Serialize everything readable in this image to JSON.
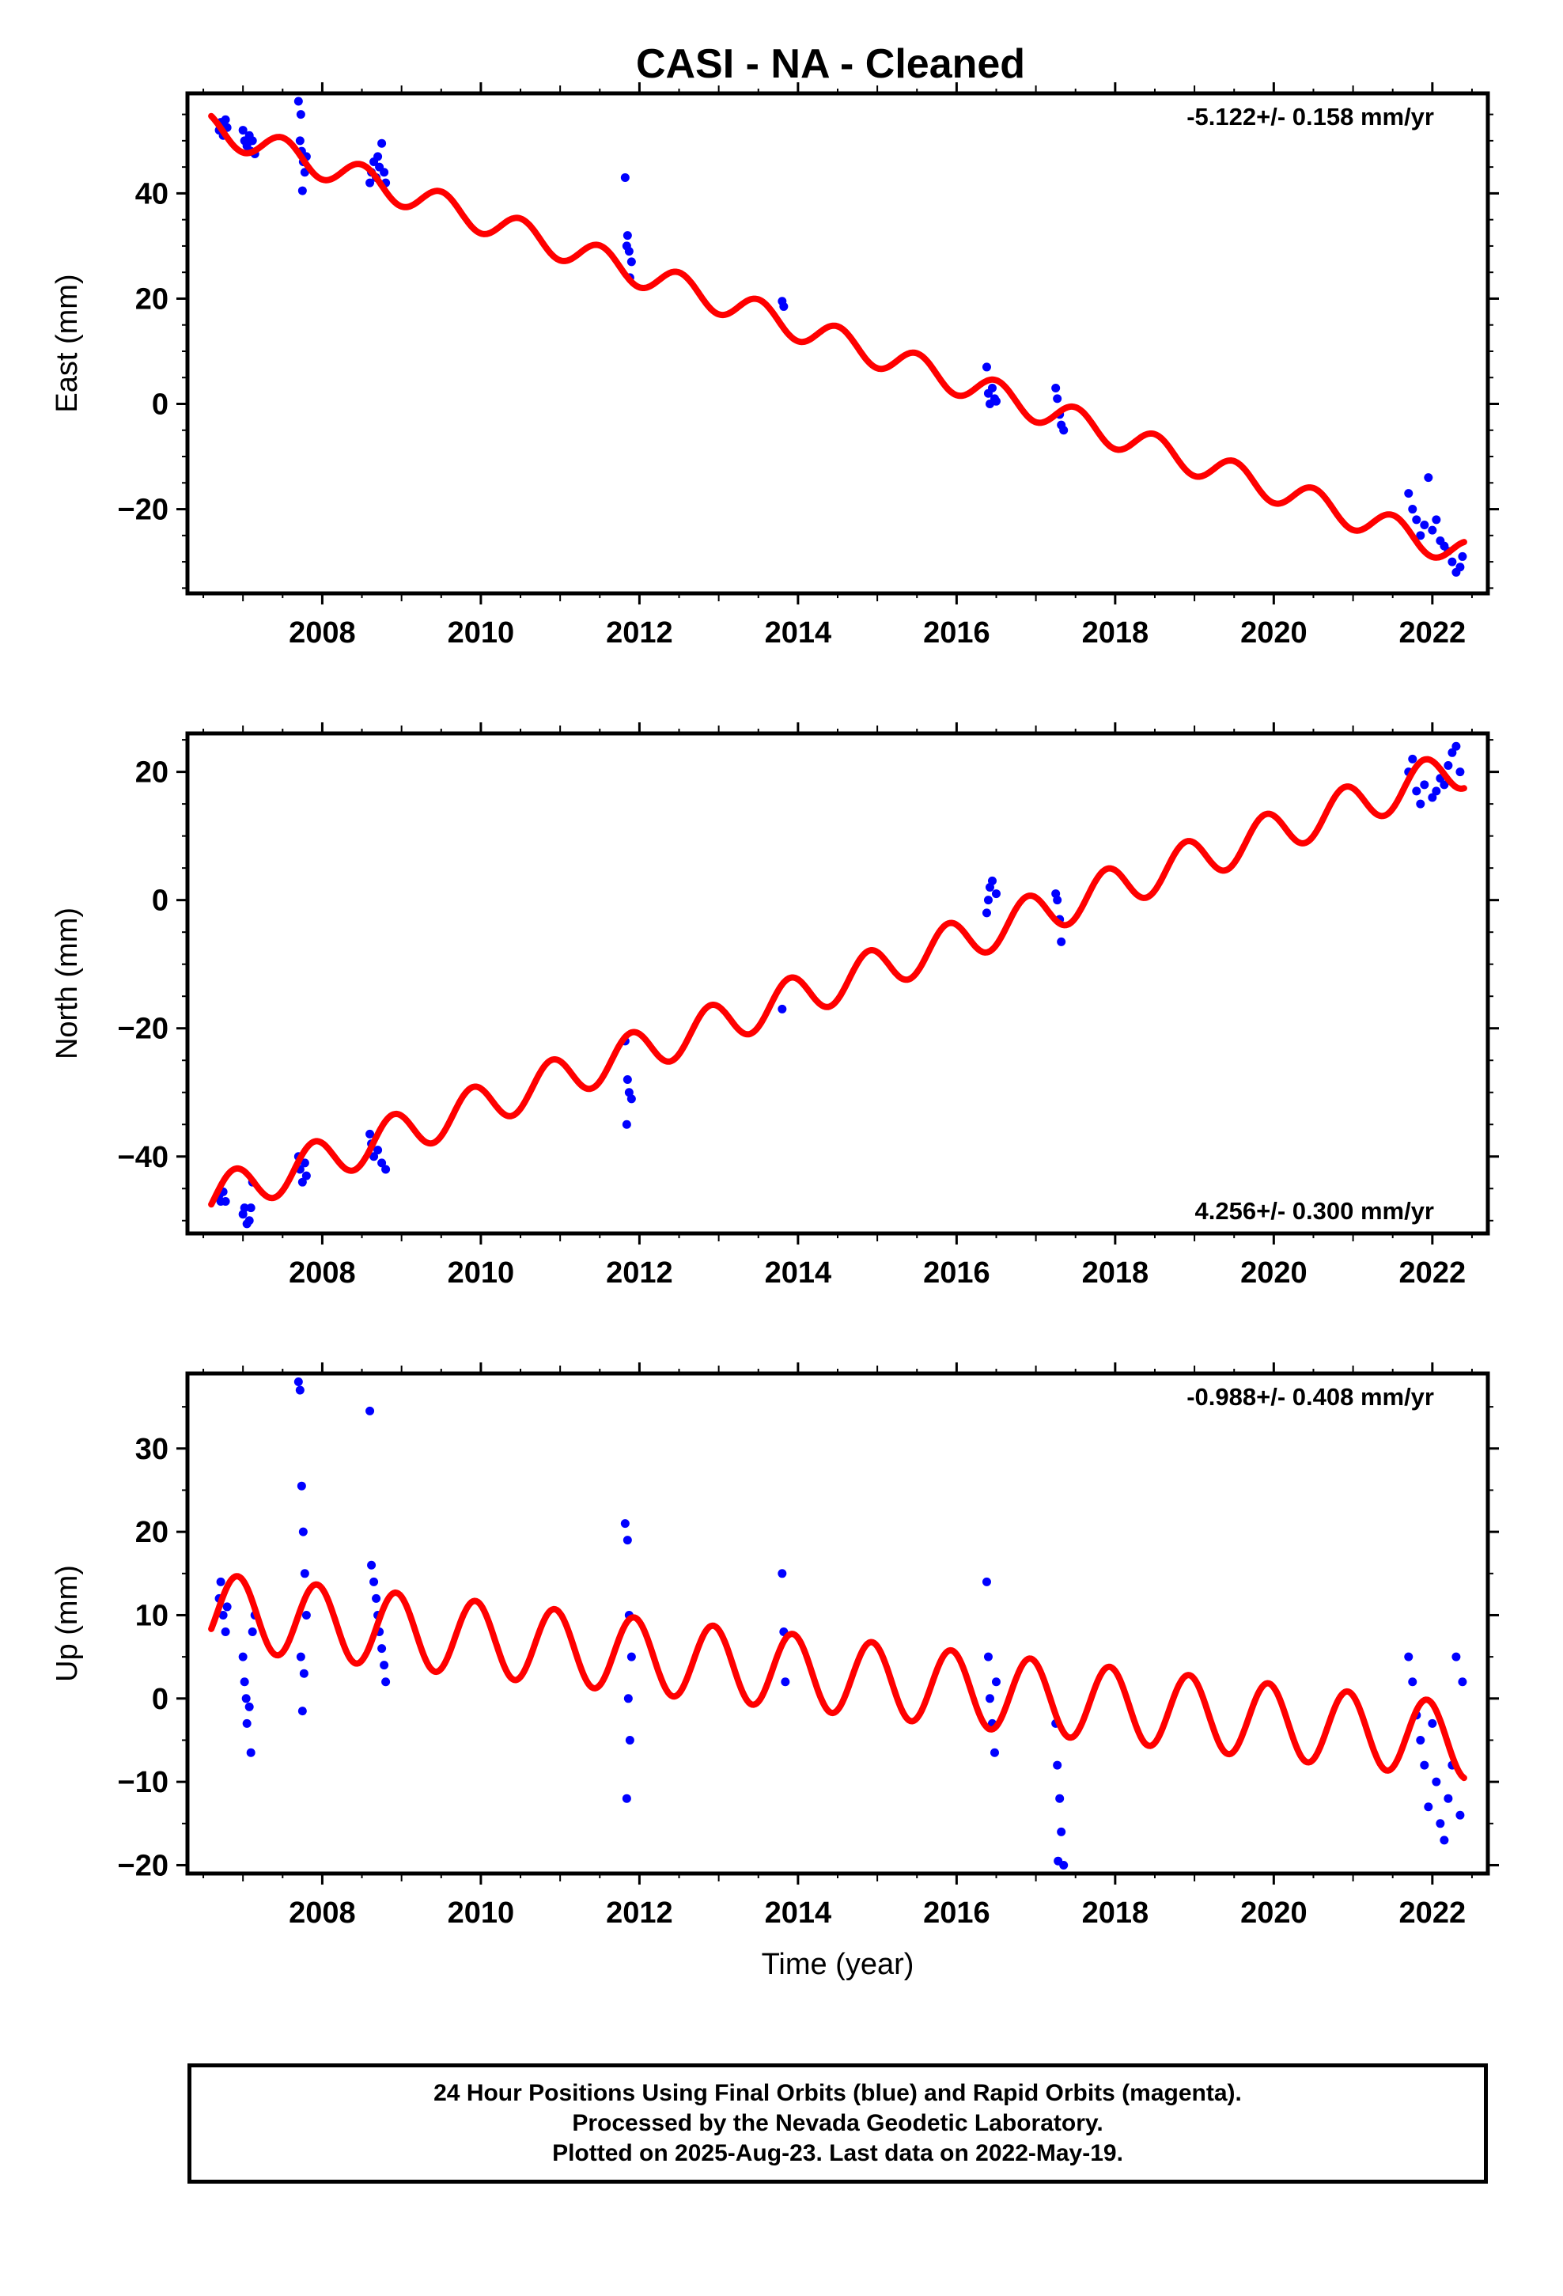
{
  "title": "CASI  - NA - Cleaned",
  "colors": {
    "data": "#0000ff",
    "model": "#ff0000",
    "frame": "#000000"
  },
  "footer": {
    "line1": "24 Hour Positions Using Final Orbits (blue) and Rapid Orbits (magenta).",
    "line2": "Processed by the Nevada Geodetic Laboratory.",
    "line3": "Plotted on 2025-Aug-23. Last data on 2022-May-19."
  },
  "chart_data": [
    {
      "type": "scatter",
      "title": "CASI  - NA - Cleaned",
      "ylabel": "East (mm)",
      "xlabel": "",
      "rate_text": "-5.122+/- 0.158 mm/yr",
      "rate_position": "top-right",
      "xlim": [
        2006.3,
        2022.7
      ],
      "ylim": [
        -36,
        59
      ],
      "xticks": [
        2008,
        2010,
        2012,
        2014,
        2016,
        2018,
        2020,
        2022
      ],
      "yticks": [
        -20,
        0,
        20,
        40
      ],
      "series": [
        {
          "kind": "points",
          "x": [
            2006.7,
            2006.72,
            2006.75,
            2006.78,
            2006.8,
            2007.0,
            2007.02,
            2007.05,
            2007.08,
            2007.1,
            2007.12,
            2007.15,
            2007.7,
            2007.72,
            2007.74,
            2007.76,
            2007.78,
            2007.8,
            2007.75,
            2007.73,
            2008.6,
            2008.62,
            2008.65,
            2008.68,
            2008.7,
            2008.72,
            2008.75,
            2008.78,
            2008.8,
            2011.82,
            2011.85,
            2011.87,
            2011.9,
            2011.88,
            2011.84,
            2013.8,
            2013.82,
            2016.38,
            2016.4,
            2016.42,
            2016.45,
            2016.48,
            2016.5,
            2017.25,
            2017.27,
            2017.3,
            2017.32,
            2017.35,
            2021.7,
            2021.75,
            2021.8,
            2021.85,
            2021.9,
            2021.95,
            2022.0,
            2022.05,
            2022.1,
            2022.15,
            2022.2,
            2022.25,
            2022.3,
            2022.35,
            2022.38
          ],
          "y": [
            52,
            53.5,
            51,
            54,
            52.5,
            52,
            50,
            49,
            51,
            48,
            50,
            47.5,
            57.5,
            50,
            48,
            46,
            44,
            47,
            40.5,
            55,
            42,
            44,
            46,
            43,
            47,
            45,
            49.5,
            44,
            42,
            43,
            32,
            29,
            27,
            24,
            30,
            19.5,
            18.5,
            7,
            2,
            0,
            3,
            1,
            0.5,
            3,
            1,
            -2,
            -4,
            -5,
            -17,
            -20,
            -22,
            -25,
            -23,
            -14,
            -24,
            -22,
            -26,
            -27,
            -28,
            -30,
            -32,
            -31,
            -29
          ]
        },
        {
          "kind": "model",
          "offset": 52.5,
          "rate": -5.122,
          "t0": 2006.6,
          "amp": 2.7,
          "phase": 2.2,
          "start": 2006.6,
          "end": 2022.4
        }
      ]
    },
    {
      "type": "scatter",
      "ylabel": "North (mm)",
      "xlabel": "",
      "rate_text": "4.256+/- 0.300 mm/yr",
      "rate_position": "bottom-right",
      "xlim": [
        2006.3,
        2022.7
      ],
      "ylim": [
        -52,
        26
      ],
      "xticks": [
        2008,
        2010,
        2012,
        2014,
        2016,
        2018,
        2020,
        2022
      ],
      "yticks": [
        -40,
        -20,
        0,
        20
      ],
      "series": [
        {
          "kind": "points",
          "x": [
            2006.7,
            2006.72,
            2006.75,
            2006.78,
            2007.0,
            2007.02,
            2007.05,
            2007.08,
            2007.1,
            2007.12,
            2007.7,
            2007.72,
            2007.75,
            2007.78,
            2007.8,
            2008.6,
            2008.62,
            2008.65,
            2008.7,
            2008.75,
            2008.8,
            2011.82,
            2011.85,
            2011.87,
            2011.9,
            2011.84,
            2013.8,
            2016.38,
            2016.4,
            2016.42,
            2016.45,
            2016.5,
            2017.25,
            2017.27,
            2017.3,
            2017.32,
            2021.7,
            2021.75,
            2021.8,
            2021.85,
            2021.9,
            2022.0,
            2022.05,
            2022.1,
            2022.15,
            2022.2,
            2022.25,
            2022.3,
            2022.35
          ],
          "y": [
            -46,
            -47,
            -45.5,
            -47,
            -49,
            -48,
            -50.5,
            -50,
            -48,
            -44,
            -40,
            -42,
            -44,
            -41,
            -43,
            -36.5,
            -38,
            -40,
            -39,
            -41,
            -42,
            -22,
            -28,
            -30,
            -31,
            -35,
            -17,
            -2,
            0,
            2,
            3,
            1,
            1,
            0,
            -3,
            -6.5,
            20,
            22,
            17,
            15,
            18,
            16,
            17,
            19,
            18,
            21,
            23,
            24,
            20
          ]
        },
        {
          "kind": "model",
          "offset": -46.5,
          "rate": 4.256,
          "t0": 2006.6,
          "amp": 3.3,
          "phase": -0.3,
          "start": 2006.6,
          "end": 2022.4
        }
      ]
    },
    {
      "type": "scatter",
      "ylabel": "Up (mm)",
      "xlabel": "Time (year)",
      "rate_text": "-0.988+/- 0.408 mm/yr",
      "rate_position": "top-right",
      "xlim": [
        2006.3,
        2022.7
      ],
      "ylim": [
        -21,
        39
      ],
      "xticks": [
        2008,
        2010,
        2012,
        2014,
        2016,
        2018,
        2020,
        2022
      ],
      "yticks": [
        -20,
        -10,
        0,
        10,
        20,
        30
      ],
      "series": [
        {
          "kind": "points",
          "x": [
            2006.7,
            2006.72,
            2006.75,
            2006.78,
            2006.8,
            2007.0,
            2007.02,
            2007.05,
            2007.08,
            2007.1,
            2007.12,
            2007.15,
            2007.04,
            2007.7,
            2007.72,
            2007.74,
            2007.76,
            2007.78,
            2007.8,
            2007.75,
            2007.73,
            2007.77,
            2008.6,
            2008.62,
            2008.65,
            2008.68,
            2008.7,
            2008.72,
            2008.75,
            2008.78,
            2008.8,
            2011.82,
            2011.85,
            2011.87,
            2011.9,
            2011.88,
            2011.84,
            2011.86,
            2013.8,
            2013.82,
            2013.84,
            2016.38,
            2016.4,
            2016.42,
            2016.45,
            2016.48,
            2016.5,
            2017.25,
            2017.27,
            2017.3,
            2017.32,
            2017.35,
            2017.28,
            2021.7,
            2021.75,
            2021.8,
            2021.85,
            2021.9,
            2021.95,
            2022.0,
            2022.05,
            2022.1,
            2022.15,
            2022.2,
            2022.25,
            2022.3,
            2022.35,
            2022.38
          ],
          "y": [
            12,
            14,
            10,
            8,
            11,
            5,
            2,
            -3,
            -1,
            -6.5,
            8,
            10,
            0,
            38,
            37,
            25.5,
            20,
            15,
            10,
            -1.5,
            5,
            3,
            34.5,
            16,
            14,
            12,
            10,
            8,
            6,
            4,
            2,
            21,
            19,
            10,
            5,
            -5,
            -12,
            0,
            15,
            8,
            2,
            14,
            5,
            0,
            -3,
            -6.5,
            2,
            -3,
            -8,
            -12,
            -16,
            -20,
            -19.5,
            5,
            2,
            -2,
            -5,
            -8,
            -13,
            -3,
            -10,
            -15,
            -17,
            -12,
            -8,
            5,
            -14,
            2
          ]
        },
        {
          "kind": "model",
          "offset": 10.5,
          "rate": -0.988,
          "t0": 2006.6,
          "amp": 4.5,
          "phase": -0.5,
          "start": 2006.6,
          "end": 2022.4
        }
      ]
    }
  ]
}
